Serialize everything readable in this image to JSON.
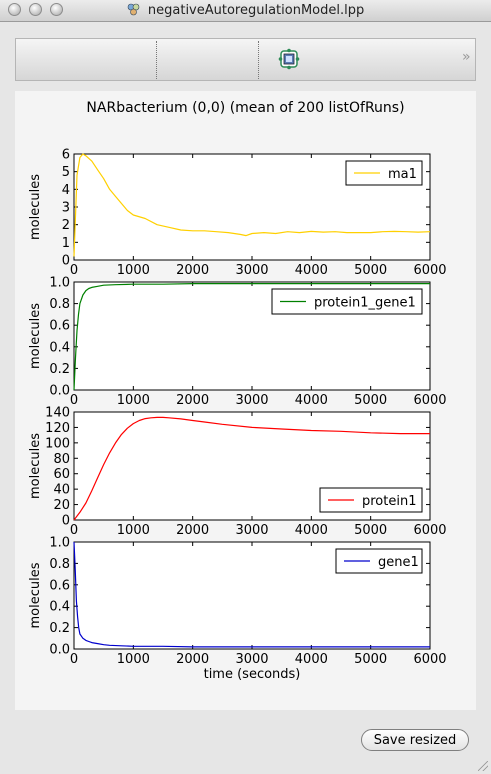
{
  "window": {
    "title": "negativeAutoregulationModel.lpp",
    "close_icon": "close-icon",
    "minimize_icon": "minimize-icon",
    "zoom_icon": "zoom-icon"
  },
  "toolbar": {
    "tool_icon": "network-model-icon",
    "overflow_icon": "chevron-double-right-icon"
  },
  "figure": {
    "title": "NARbacterium (0,0) (mean of 200 listOfRuns)"
  },
  "save_button": {
    "label": "Save resized"
  },
  "chart_data": [
    {
      "type": "line",
      "xlabel": "",
      "ylabel": "molecules",
      "xlim": [
        0,
        6000
      ],
      "ylim": [
        0,
        6
      ],
      "xticks": [
        "0",
        "1000",
        "2000",
        "3000",
        "4000",
        "5000",
        "6000"
      ],
      "yticks": [
        "0",
        "1",
        "2",
        "3",
        "4",
        "5",
        "6"
      ],
      "legend": "top-right",
      "grid": false,
      "series": [
        {
          "name": "ma1",
          "color": "#ffd000",
          "x": [
            0,
            50,
            100,
            150,
            200,
            300,
            400,
            500,
            600,
            700,
            800,
            900,
            1000,
            1200,
            1400,
            1600,
            1800,
            2000,
            2200,
            2400,
            2600,
            2800,
            2900,
            3000,
            3200,
            3400,
            3600,
            3800,
            4000,
            4200,
            4400,
            4600,
            4800,
            5000,
            5200,
            5400,
            5600,
            5800,
            6000
          ],
          "y": [
            0.2,
            4.8,
            5.8,
            6.0,
            5.9,
            5.6,
            5.1,
            4.6,
            4.0,
            3.6,
            3.2,
            2.8,
            2.55,
            2.35,
            2.0,
            1.85,
            1.7,
            1.65,
            1.65,
            1.6,
            1.55,
            1.45,
            1.38,
            1.5,
            1.55,
            1.5,
            1.6,
            1.55,
            1.62,
            1.58,
            1.6,
            1.55,
            1.55,
            1.55,
            1.6,
            1.62,
            1.6,
            1.58,
            1.6
          ]
        }
      ]
    },
    {
      "type": "line",
      "xlabel": "",
      "ylabel": "molecules",
      "xlim": [
        0,
        6000
      ],
      "ylim": [
        0,
        1
      ],
      "xticks": [
        "0",
        "1000",
        "2000",
        "3000",
        "4000",
        "5000",
        "6000"
      ],
      "yticks": [
        "0.0",
        "0.2",
        "0.4",
        "0.6",
        "0.8",
        "1.0"
      ],
      "legend": "top-right",
      "grid": false,
      "series": [
        {
          "name": "protein1_gene1",
          "color": "#008000",
          "x": [
            0,
            25,
            50,
            75,
            100,
            150,
            200,
            250,
            300,
            400,
            500,
            700,
            1000,
            1500,
            2000,
            3000,
            4000,
            5000,
            6000
          ],
          "y": [
            0.0,
            0.3,
            0.55,
            0.7,
            0.8,
            0.88,
            0.92,
            0.94,
            0.95,
            0.96,
            0.97,
            0.975,
            0.98,
            0.98,
            0.985,
            0.985,
            0.985,
            0.985,
            0.985
          ]
        }
      ]
    },
    {
      "type": "line",
      "xlabel": "",
      "ylabel": "molecules",
      "xlim": [
        0,
        6000
      ],
      "ylim": [
        0,
        140
      ],
      "xticks": [
        "0",
        "1000",
        "2000",
        "3000",
        "4000",
        "5000",
        "6000"
      ],
      "yticks": [
        "0",
        "20",
        "40",
        "60",
        "80",
        "100",
        "120",
        "140"
      ],
      "legend": "bottom-right",
      "grid": false,
      "series": [
        {
          "name": "protein1",
          "color": "#ff0000",
          "x": [
            0,
            100,
            200,
            300,
            400,
            500,
            600,
            700,
            800,
            900,
            1000,
            1100,
            1200,
            1300,
            1400,
            1500,
            1600,
            1800,
            2000,
            2200,
            2500,
            3000,
            3500,
            4000,
            4500,
            5000,
            5500,
            6000
          ],
          "y": [
            0,
            10,
            22,
            38,
            55,
            72,
            87,
            100,
            111,
            119,
            125,
            129,
            131.5,
            132.5,
            133,
            133,
            132.5,
            131,
            129,
            127,
            124,
            120,
            118,
            116,
            115,
            113,
            112,
            112
          ]
        }
      ]
    },
    {
      "type": "line",
      "xlabel": "time (seconds)",
      "ylabel": "molecules",
      "xlim": [
        0,
        6000
      ],
      "ylim": [
        0,
        1
      ],
      "xticks": [
        "0",
        "1000",
        "2000",
        "3000",
        "4000",
        "5000",
        "6000"
      ],
      "yticks": [
        "0.0",
        "0.2",
        "0.4",
        "0.6",
        "0.8",
        "1.0"
      ],
      "legend": "top-right",
      "grid": false,
      "series": [
        {
          "name": "gene1",
          "color": "#0000cc",
          "x": [
            0,
            20,
            40,
            60,
            80,
            100,
            150,
            200,
            250,
            300,
            400,
            500,
            600,
            800,
            1000,
            1500,
            2000,
            3000,
            4000,
            5000,
            6000
          ],
          "y": [
            1.0,
            0.75,
            0.45,
            0.3,
            0.2,
            0.14,
            0.1,
            0.08,
            0.07,
            0.06,
            0.05,
            0.04,
            0.035,
            0.03,
            0.025,
            0.025,
            0.02,
            0.02,
            0.02,
            0.02,
            0.02
          ]
        }
      ]
    }
  ]
}
